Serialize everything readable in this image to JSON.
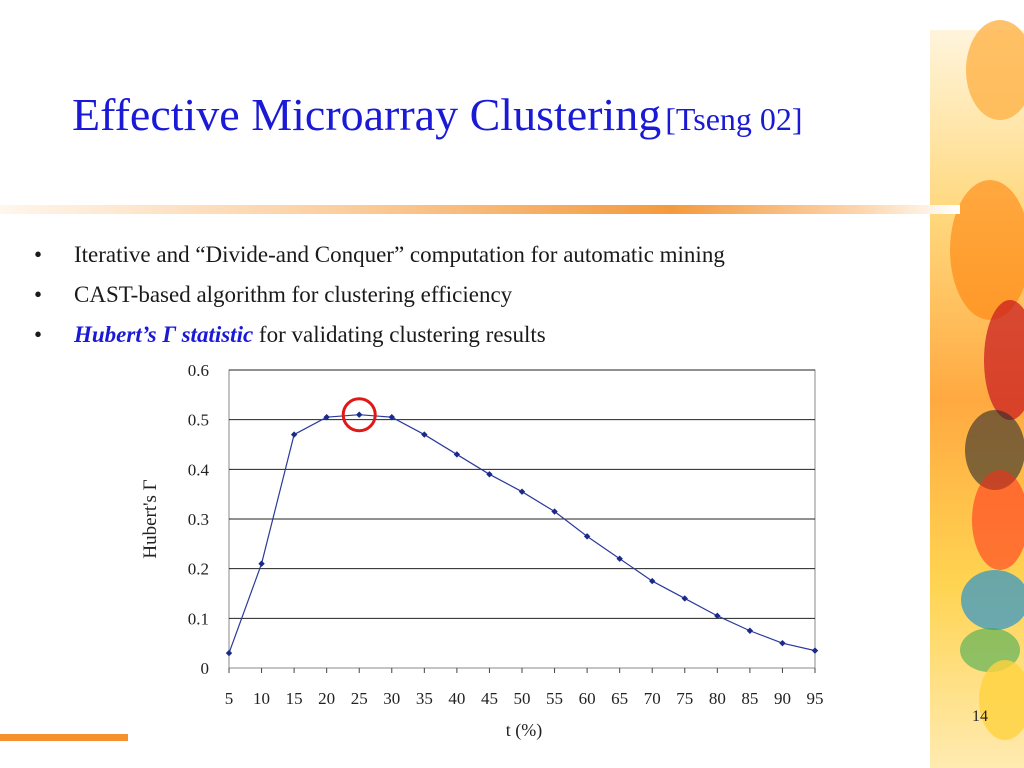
{
  "slide": {
    "title_main": "Effective  Microarray Clustering",
    "title_ref": "[Tseng 02]",
    "page_number": "14"
  },
  "bullets": [
    {
      "marker": "•",
      "text": "Iterative and “Divide-and Conquer” computation for automatic mining"
    },
    {
      "marker": "•",
      "text": "CAST-based algorithm for clustering efficiency"
    },
    {
      "marker": "•",
      "highlight": "Hubert’s  Γ statistic",
      "text": " for validating clustering results"
    }
  ],
  "chart_data": {
    "type": "line",
    "xlabel": "t (%)",
    "ylabel": "Hubert's Γ",
    "x": [
      5,
      10,
      15,
      20,
      25,
      30,
      35,
      40,
      45,
      50,
      55,
      60,
      65,
      70,
      75,
      80,
      85,
      90,
      95
    ],
    "y": [
      0.03,
      0.21,
      0.47,
      0.505,
      0.51,
      0.505,
      0.47,
      0.43,
      0.39,
      0.355,
      0.315,
      0.265,
      0.22,
      0.175,
      0.14,
      0.105,
      0.075,
      0.05,
      0.035
    ],
    "ylim": [
      0,
      0.6
    ],
    "y_ticks": [
      "0",
      "0.1",
      "0.2",
      "0.3",
      "0.4",
      "0.5",
      "0.6"
    ],
    "x_ticks": [
      "5",
      "10",
      "15",
      "20",
      "25",
      "30",
      "35",
      "40",
      "45",
      "50",
      "55",
      "60",
      "65",
      "70",
      "75",
      "80",
      "85",
      "90",
      "95"
    ],
    "grid": "horizontal",
    "line_color": "#2a3a9a",
    "highlight_x": 25,
    "highlight_color": "#e01818"
  },
  "colors": {
    "title": "#1a1ad6",
    "accent_orange": "#f5922d"
  }
}
